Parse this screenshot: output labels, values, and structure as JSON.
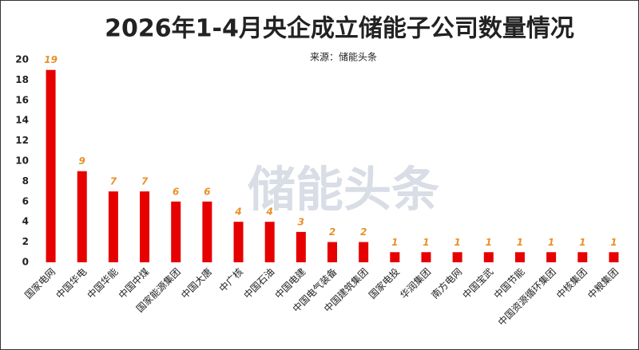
{
  "chart_data": {
    "type": "bar",
    "title": "2026年1-4月央企成立储能子公司数量情况",
    "subtitle": "来源：储能头条",
    "watermark": "储能头条",
    "categories": [
      "国家电网",
      "中国华电",
      "中国华能",
      "中国中煤",
      "国家能源集团",
      "中国大唐",
      "中广核",
      "中国石油",
      "中国电建",
      "中国电气装备",
      "中国建筑集团",
      "国家电投",
      "华润集团",
      "南方电网",
      "中国宝武",
      "中国节能",
      "中国资源循环集团",
      "中核集团",
      "中粮集团"
    ],
    "values": [
      19,
      9,
      7,
      7,
      6,
      6,
      4,
      4,
      3,
      2,
      2,
      1,
      1,
      1,
      1,
      1,
      1,
      1,
      1
    ],
    "color": "#e60000",
    "label_color": "#e8912a",
    "ylim": [
      0,
      20
    ],
    "yticks": [
      0,
      2,
      4,
      6,
      8,
      10,
      12,
      14,
      16,
      18,
      20
    ],
    "grid": false
  }
}
